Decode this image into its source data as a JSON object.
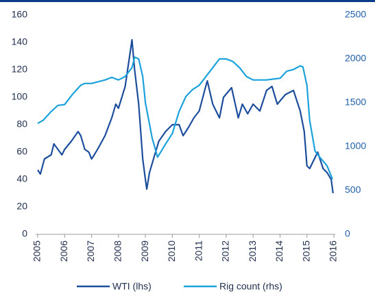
{
  "chart_data": {
    "type": "line",
    "xlim": [
      2005,
      2016
    ],
    "xticks": [
      2005,
      2006,
      2007,
      2008,
      2009,
      2010,
      2011,
      2012,
      2013,
      2014,
      2015,
      2016
    ],
    "ylim": [
      0,
      160
    ],
    "yticks": [
      0,
      20,
      40,
      60,
      80,
      100,
      120,
      140,
      160
    ],
    "y2lim": [
      0,
      2500
    ],
    "y2ticks": [
      0,
      500,
      1000,
      1500,
      2000,
      2500
    ],
    "legend": "bottom",
    "series": [
      {
        "name": "WTI (lhs)",
        "color": "#1c4d9c",
        "x": [
          2005.0,
          2005.1,
          2005.25,
          2005.5,
          2005.6,
          2005.75,
          2005.9,
          2006.0,
          2006.25,
          2006.5,
          2006.6,
          2006.75,
          2006.9,
          2007.0,
          2007.1,
          2007.25,
          2007.5,
          2007.75,
          2007.9,
          2008.0,
          2008.25,
          2008.45,
          2008.5,
          2008.6,
          2008.75,
          2008.9,
          2009.0,
          2009.05,
          2009.15,
          2009.3,
          2009.5,
          2009.75,
          2010.0,
          2010.25,
          2010.4,
          2010.6,
          2010.8,
          2011.0,
          2011.2,
          2011.3,
          2011.5,
          2011.75,
          2011.9,
          2012.2,
          2012.45,
          2012.6,
          2012.8,
          2013.0,
          2013.25,
          2013.5,
          2013.7,
          2013.9,
          2014.2,
          2014.5,
          2014.75,
          2014.9,
          2015.0,
          2015.1,
          2015.4,
          2015.6,
          2015.75,
          2015.9,
          2015.97
        ],
        "values": [
          47,
          44,
          55,
          58,
          66,
          62,
          58,
          62,
          68,
          75,
          72,
          62,
          60,
          55,
          58,
          63,
          72,
          85,
          95,
          92,
          108,
          135,
          142,
          120,
          95,
          55,
          40,
          33,
          45,
          55,
          68,
          75,
          80,
          80,
          72,
          78,
          85,
          90,
          105,
          112,
          95,
          85,
          100,
          107,
          85,
          95,
          88,
          95,
          90,
          105,
          108,
          95,
          102,
          105,
          90,
          75,
          50,
          48,
          60,
          48,
          45,
          40,
          30
        ]
      },
      {
        "name": "Rig count (rhs)",
        "color": "#1ba1dc",
        "axis": "y2",
        "x": [
          2005.0,
          2005.2,
          2005.5,
          2005.75,
          2006.0,
          2006.3,
          2006.6,
          2006.75,
          2007.0,
          2007.5,
          2007.75,
          2008.0,
          2008.25,
          2008.5,
          2008.6,
          2008.75,
          2008.9,
          2009.0,
          2009.25,
          2009.45,
          2009.75,
          2010.0,
          2010.25,
          2010.5,
          2010.75,
          2011.0,
          2011.25,
          2011.5,
          2011.75,
          2012.0,
          2012.25,
          2012.5,
          2012.75,
          2013.0,
          2013.5,
          2013.75,
          2014.0,
          2014.25,
          2014.5,
          2014.75,
          2014.85,
          2015.0,
          2015.1,
          2015.3,
          2015.5,
          2015.75,
          2015.95
        ],
        "values": [
          1265,
          1300,
          1400,
          1470,
          1480,
          1600,
          1700,
          1720,
          1720,
          1760,
          1790,
          1760,
          1800,
          1900,
          2020,
          2000,
          1800,
          1500,
          1100,
          880,
          1030,
          1150,
          1400,
          1570,
          1650,
          1700,
          1800,
          1900,
          2000,
          2000,
          1970,
          1900,
          1800,
          1760,
          1760,
          1770,
          1780,
          1860,
          1880,
          1920,
          1910,
          1700,
          1300,
          950,
          870,
          780,
          630
        ]
      }
    ]
  }
}
